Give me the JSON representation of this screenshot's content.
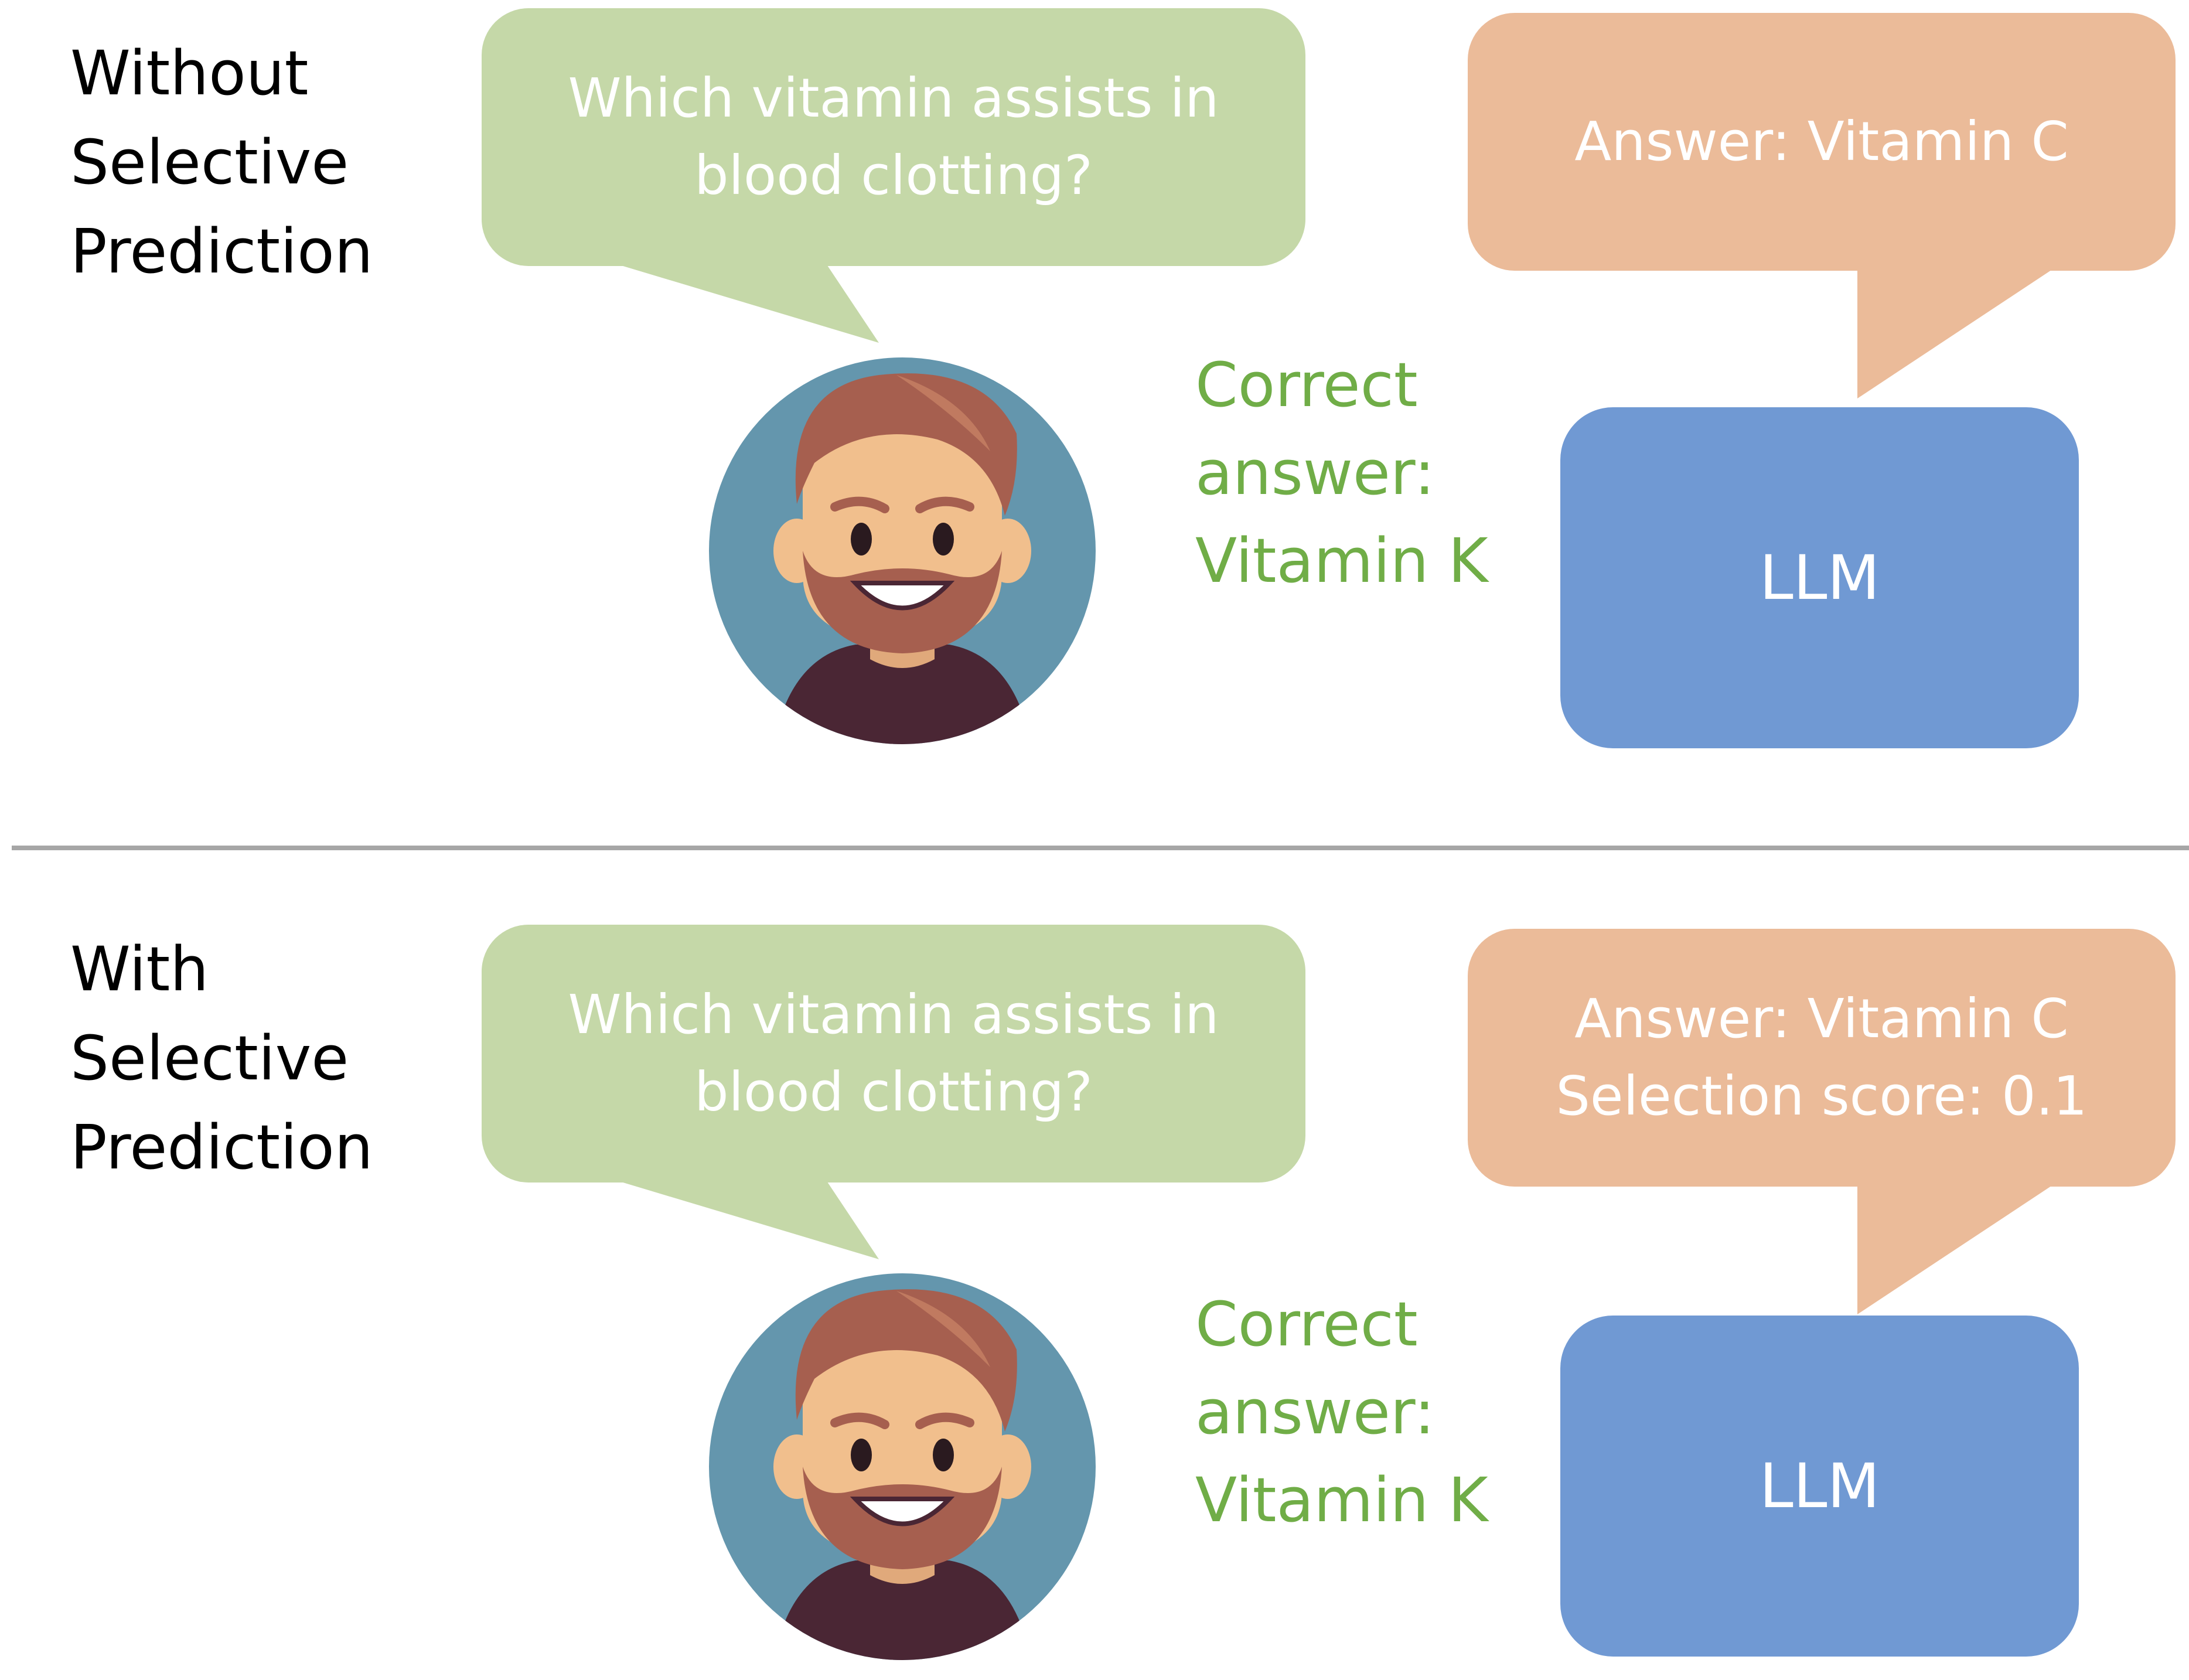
{
  "sections": [
    {
      "label": [
        "Without",
        "Selective",
        "Prediction"
      ],
      "question": [
        "Which vitamin assists in",
        "blood clotting?"
      ],
      "answer": [
        "Answer: Vitamin C"
      ],
      "correct": [
        "Correct",
        "answer:",
        "Vitamin K"
      ],
      "model_label": "LLM"
    },
    {
      "label": [
        "With",
        "Selective",
        "Prediction"
      ],
      "question": [
        "Which vitamin assists in",
        "blood clotting?"
      ],
      "answer": [
        "Answer: Vitamin C",
        "Selection score: 0.1"
      ],
      "correct": [
        "Correct",
        "answer:",
        "Vitamin K"
      ],
      "model_label": "LLM"
    }
  ],
  "icons": {
    "user": "user-avatar-icon"
  },
  "colors": {
    "question_bubble": "#c5d8a8",
    "answer_bubble": "#ebbb99",
    "llm_box": "#7099d3",
    "correct_text": "#70ad47",
    "divider": "#a6a6a6",
    "avatar_bg": "#6496ad",
    "skin": "#f1bf8d",
    "hair": "#a65f4f",
    "shirt": "#4a2634"
  }
}
